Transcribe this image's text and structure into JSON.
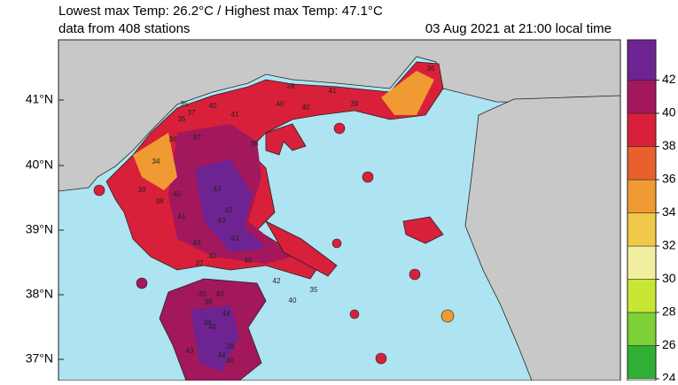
{
  "header": {
    "title": "Lowest max Temp: 26.2°C / Highest max Temp: 47.1°C",
    "subtitle": "data from 408 stations",
    "timestamp": "03 Aug 2021 at 21:00 local time"
  },
  "map": {
    "latitude_labels": [
      "41°N",
      "40°N",
      "39°N",
      "38°N",
      "37°N"
    ],
    "stations": [
      "35",
      "37",
      "28",
      "41",
      "40",
      "39",
      "40",
      "36",
      "35",
      "38",
      "40",
      "41",
      "36",
      "37",
      "34",
      "39",
      "38",
      "40",
      "43",
      "42",
      "43",
      "43",
      "41",
      "37",
      "42",
      "43",
      "45",
      "38",
      "35",
      "43",
      "44",
      "45",
      "38",
      "39",
      "44",
      "46",
      "43",
      "42",
      "40",
      "35"
    ]
  },
  "colorbar": {
    "ticks": [
      24,
      26,
      28,
      30,
      32,
      34,
      36,
      38,
      40,
      42
    ],
    "colors": [
      "#2fb034",
      "#7dd035",
      "#c8e634",
      "#f2f0a0",
      "#f1c94a",
      "#ef9a32",
      "#e9602c",
      "#d8203a",
      "#a3175c",
      "#6e2393"
    ]
  }
}
